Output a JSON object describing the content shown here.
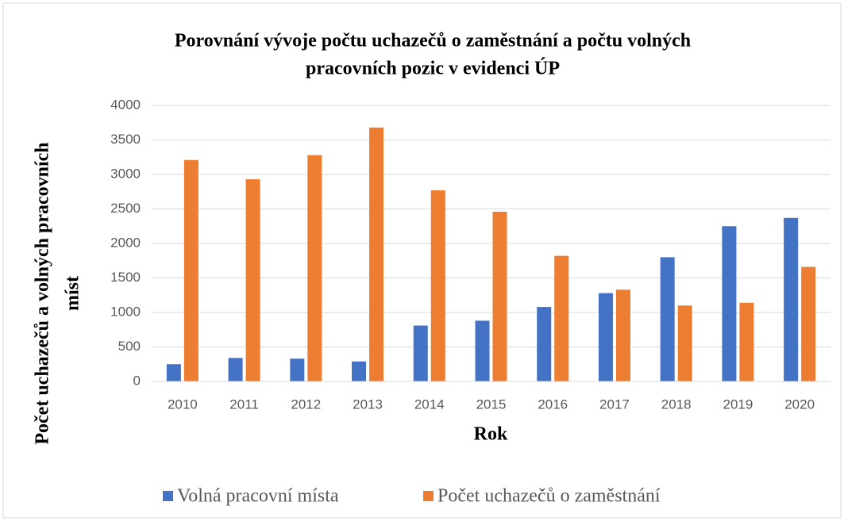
{
  "chart_data": {
    "type": "bar",
    "title": [
      "Porovnání vývoje počtu uchazečů o zaměstnání a počtu volných",
      "pracovních pozic v evidenci ÚP"
    ],
    "xlabel": "Rok",
    "ylabel": [
      "Počet uchazečů  a volných pracovních",
      "míst"
    ],
    "categories": [
      "2010",
      "2011",
      "2012",
      "2013",
      "2014",
      "2015",
      "2016",
      "2017",
      "2018",
      "2019",
      "2020"
    ],
    "series": [
      {
        "name": "Volná pracovní místa",
        "color": "#4472c4",
        "values": [
          250,
          340,
          330,
          290,
          810,
          880,
          1080,
          1280,
          1800,
          2250,
          2370
        ]
      },
      {
        "name": "Počet uchazečů o zaměstnání",
        "color": "#ed7d31",
        "values": [
          3210,
          2930,
          3280,
          3680,
          2770,
          2460,
          1820,
          1330,
          1100,
          1140,
          1660
        ]
      }
    ],
    "ylim": [
      0,
      4000
    ],
    "yticks": [
      0,
      500,
      1000,
      1500,
      2000,
      2500,
      3000,
      3500,
      4000
    ],
    "grid": true,
    "legend": "bottom"
  }
}
